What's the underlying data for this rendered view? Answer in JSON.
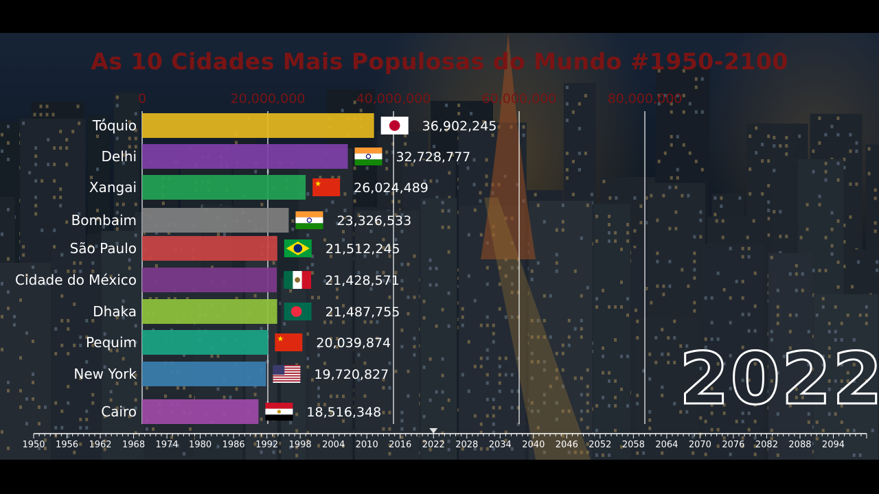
{
  "chart_data": {
    "type": "bar",
    "title": "As 10 Cidades Mais Populosas do Mundo #1950-2100",
    "year": "2022",
    "xlim": [
      0,
      100000000
    ],
    "x_ticks": [
      {
        "value": 0,
        "label": "0"
      },
      {
        "value": 20000000,
        "label": "20,000,000"
      },
      {
        "value": 40000000,
        "label": "40,000,000"
      },
      {
        "value": 60000000,
        "label": "60,000,000"
      },
      {
        "value": 80000000,
        "label": "80,000,000"
      }
    ],
    "categories": [
      "Tóquio",
      "Delhi",
      "Xangai",
      "Bombaim",
      "São Paulo",
      "Cidade do México",
      "Dhaka",
      "Pequim",
      "New York",
      "Cairo"
    ],
    "values": [
      36902245,
      32728777,
      26024489,
      23326533,
      21512245,
      21428571,
      21487755,
      20039874,
      19720827,
      18516348
    ],
    "value_labels": [
      "36,902,245",
      "32,728,777",
      "26,024,489",
      "23,326,533",
      "21,512,245",
      "21,428,571",
      "21,487,755",
      "20,039,874",
      "19,720,827",
      "18,516,348"
    ],
    "flags": [
      "japan-flag-icon",
      "india-flag-icon",
      "china-flag-icon",
      "india-flag-icon",
      "brazil-flag-icon",
      "mexico-flag-icon",
      "bangladesh-flag-icon",
      "china-flag-icon",
      "usa-flag-icon",
      "egypt-flag-icon"
    ],
    "colors": [
      "#e6b91e",
      "#7f3fa8",
      "#23a455",
      "#808080",
      "#cc4444",
      "#7d3a8c",
      "#8fc23c",
      "#1aa586",
      "#3a7fb0",
      "#a04aa8"
    ],
    "timeline": {
      "start": 1950,
      "end": 2100,
      "current": 2022,
      "labels": [
        "1950",
        "1956",
        "1962",
        "1968",
        "1974",
        "1980",
        "1986",
        "1992",
        "1998",
        "2004",
        "2010",
        "2016",
        "2022",
        "2028",
        "2034",
        "2040",
        "2046",
        "2052",
        "2058",
        "2064",
        "2070",
        "2076",
        "2082",
        "2088",
        "2094"
      ]
    }
  }
}
